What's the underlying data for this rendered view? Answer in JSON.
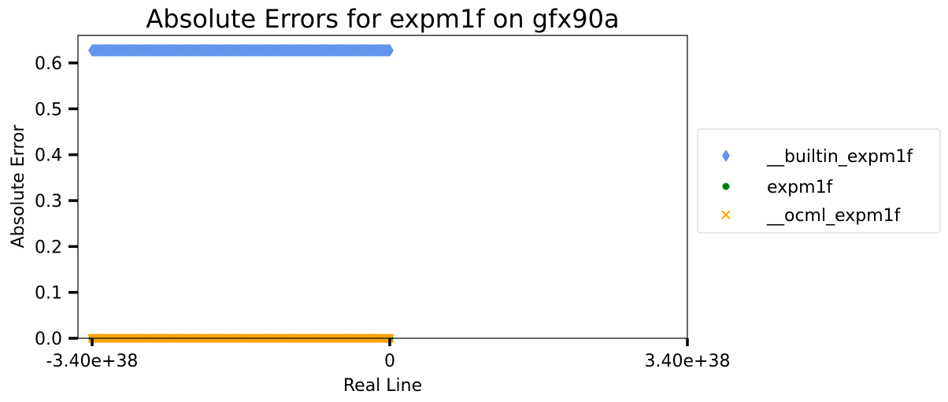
{
  "chart_data": {
    "type": "scatter",
    "title": "Absolute Errors for expm1f on gfx90a",
    "xlabel": "Real Line",
    "ylabel": "Absolute Error",
    "xlim": [
      -3.4e+38,
      3.4e+38
    ],
    "ylim": [
      0,
      0.66
    ],
    "x_ticks": [
      {
        "value": -3.4e+38,
        "label": "-3.40e+38"
      },
      {
        "value": 0,
        "label": "0"
      },
      {
        "value": 3.4e+38,
        "label": "3.40e+38"
      }
    ],
    "y_ticks": [
      {
        "value": 0.0,
        "label": "0.0"
      },
      {
        "value": 0.1,
        "label": "0.1"
      },
      {
        "value": 0.2,
        "label": "0.2"
      },
      {
        "value": 0.3,
        "label": "0.3"
      },
      {
        "value": 0.4,
        "label": "0.4"
      },
      {
        "value": 0.5,
        "label": "0.5"
      },
      {
        "value": 0.6,
        "label": "0.6"
      }
    ],
    "grid": false,
    "legend_position": "right",
    "series": [
      {
        "name": "__builtin_expm1f",
        "marker": "diamond",
        "color": "#6495ED",
        "x_range": [
          -3.4e+38,
          0
        ],
        "y": 0.6275
      },
      {
        "name": "expm1f",
        "marker": "circle",
        "color": "#008000",
        "x_range": [
          -3.4e+38,
          0
        ],
        "y": 0.0
      },
      {
        "name": "__ocml_expm1f",
        "marker": "x",
        "color": "#FFA500",
        "x_range": [
          -3.4e+38,
          0
        ],
        "y": 0.0
      }
    ]
  }
}
